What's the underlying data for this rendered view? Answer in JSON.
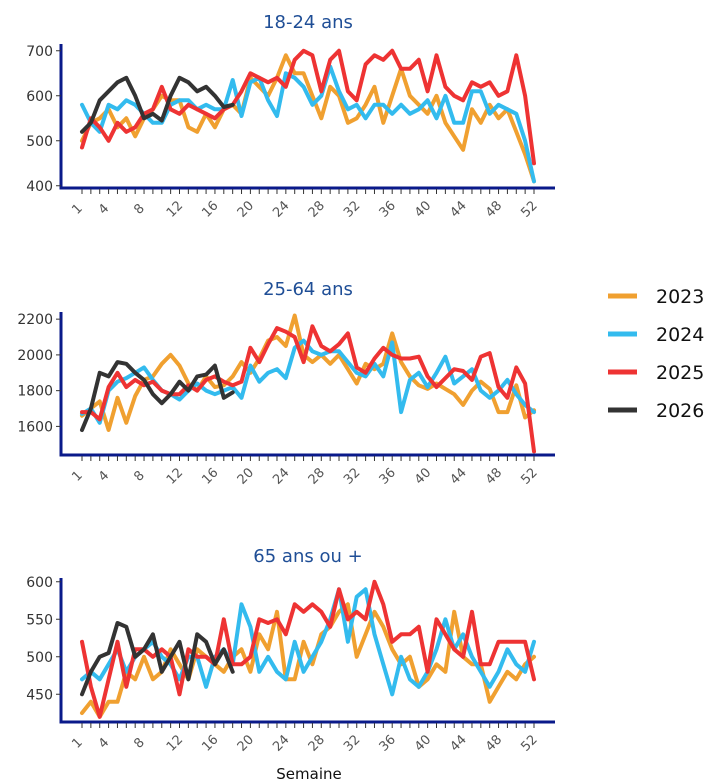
{
  "chart_data": {
    "type": "line",
    "xlabel": "Semaine",
    "x_tick_labels": [
      "1",
      "4",
      "8",
      "12",
      "16",
      "20",
      "24",
      "28",
      "32",
      "36",
      "40",
      "44",
      "48",
      "52"
    ],
    "x_tick_values": [
      1,
      4,
      8,
      12,
      16,
      20,
      24,
      28,
      32,
      36,
      40,
      44,
      48,
      52
    ],
    "legend": {
      "placement": "right",
      "entries": [
        {
          "name": "2023",
          "color": "#F0A030"
        },
        {
          "name": "2024",
          "color": "#33BBEE"
        },
        {
          "name": "2025",
          "color": "#EE3333"
        },
        {
          "name": "2026",
          "color": "#333333"
        }
      ]
    },
    "panels": [
      {
        "title": "18-24 ans",
        "ylim": [
          395,
          715
        ],
        "yticks": [
          400,
          500,
          600,
          700
        ],
        "series": [
          {
            "name": "2023",
            "color": "#F0A030",
            "x_start": 1,
            "values": [
              500,
              540,
              550,
              570,
              530,
              550,
              510,
              550,
              570,
              600,
              590,
              590,
              530,
              520,
              560,
              530,
              570,
              580,
              560,
              640,
              620,
              600,
              640,
              690,
              650,
              650,
              600,
              550,
              620,
              600,
              540,
              550,
              580,
              620,
              540,
              600,
              660,
              600,
              580,
              560,
              600,
              540,
              510,
              480,
              570,
              540,
              580,
              550,
              570,
              520,
              470,
              410
            ]
          },
          {
            "name": "2024",
            "color": "#33BBEE",
            "x_start": 1,
            "values": [
              580,
              540,
              520,
              580,
              570,
              590,
              580,
              560,
              540,
              540,
              580,
              590,
              590,
              570,
              580,
              570,
              570,
              635,
              555,
              630,
              640,
              590,
              555,
              650,
              640,
              620,
              580,
              600,
              665,
              610,
              570,
              580,
              550,
              580,
              580,
              560,
              580,
              560,
              570,
              590,
              550,
              600,
              540,
              540,
              610,
              610,
              560,
              580,
              570,
              560,
              500,
              410
            ]
          },
          {
            "name": "2025",
            "color": "#EE3333",
            "x_start": 1,
            "values": [
              485,
              550,
              530,
              500,
              540,
              520,
              530,
              560,
              570,
              620,
              570,
              560,
              580,
              570,
              560,
              550,
              570,
              580,
              610,
              650,
              640,
              630,
              640,
              620,
              680,
              700,
              690,
              610,
              680,
              700,
              610,
              590,
              670,
              690,
              680,
              700,
              660,
              660,
              680,
              610,
              690,
              620,
              600,
              590,
              630,
              620,
              630,
              600,
              610,
              690,
              600,
              450
            ]
          },
          {
            "name": "2026",
            "color": "#333333",
            "x_start": 1,
            "values": [
              520,
              540,
              590,
              610,
              630,
              640,
              600,
              550,
              560,
              545,
              600,
              640,
              630,
              610,
              620,
              600,
              575,
              580
            ]
          }
        ]
      },
      {
        "title": "25-64 ans",
        "ylim": [
          1440,
          2240
        ],
        "yticks": [
          1600,
          1800,
          2000,
          2200
        ],
        "series": [
          {
            "name": "2023",
            "color": "#F0A030",
            "x_start": 1,
            "values": [
              1660,
              1700,
              1740,
              1580,
              1760,
              1620,
              1770,
              1860,
              1880,
              1950,
              2000,
              1940,
              1840,
              1800,
              1880,
              1820,
              1830,
              1880,
              1960,
              1900,
              1980,
              2080,
              2100,
              2050,
              2220,
              2000,
              1960,
              2000,
              1950,
              2000,
              1920,
              1840,
              1950,
              1920,
              1950,
              2120,
              1960,
              1880,
              1830,
              1810,
              1840,
              1810,
              1780,
              1720,
              1800,
              1850,
              1810,
              1680,
              1680,
              1830,
              1650,
              1690
            ]
          },
          {
            "name": "2024",
            "color": "#33BBEE",
            "x_start": 1,
            "values": [
              1670,
              1700,
              1620,
              1800,
              1850,
              1870,
              1900,
              1930,
              1860,
              1800,
              1780,
              1750,
              1800,
              1840,
              1800,
              1780,
              1800,
              1820,
              1760,
              1940,
              1850,
              1900,
              1920,
              1870,
              2040,
              2080,
              2020,
              2000,
              2020,
              2020,
              1960,
              1900,
              1880,
              1950,
              1880,
              2070,
              1680,
              1860,
              1900,
              1820,
              1900,
              1990,
              1840,
              1880,
              1920,
              1800,
              1760,
              1800,
              1860,
              1780,
              1720,
              1680
            ]
          },
          {
            "name": "2025",
            "color": "#EE3333",
            "x_start": 1,
            "values": [
              1680,
              1680,
              1640,
              1820,
              1900,
              1820,
              1860,
              1830,
              1850,
              1800,
              1780,
              1780,
              1830,
              1800,
              1860,
              1880,
              1850,
              1830,
              1850,
              2040,
              1960,
              2060,
              2150,
              2130,
              2100,
              1960,
              2160,
              2050,
              2020,
              2060,
              2120,
              1930,
              1900,
              1980,
              2040,
              2000,
              1980,
              1980,
              1990,
              1880,
              1820,
              1870,
              1920,
              1910,
              1860,
              1990,
              2010,
              1820,
              1760,
              1930,
              1840,
              1460
            ]
          },
          {
            "name": "2026",
            "color": "#333333",
            "x_start": 1,
            "values": [
              1580,
              1700,
              1900,
              1880,
              1960,
              1950,
              1900,
              1860,
              1780,
              1730,
              1780,
              1850,
              1800,
              1880,
              1890,
              1940,
              1760,
              1790
            ]
          }
        ]
      },
      {
        "title": "65 ans ou +",
        "ylim": [
          413,
          605
        ],
        "yticks": [
          450,
          500,
          550,
          600
        ],
        "series": [
          {
            "name": "2023",
            "color": "#F0A030",
            "x_start": 1,
            "values": [
              425,
              440,
              420,
              440,
              440,
              480,
              470,
              500,
              470,
              480,
              510,
              490,
              470,
              510,
              500,
              490,
              480,
              500,
              510,
              480,
              530,
              510,
              560,
              470,
              470,
              520,
              490,
              530,
              540,
              560,
              570,
              500,
              530,
              560,
              540,
              510,
              490,
              500,
              460,
              470,
              490,
              480,
              560,
              500,
              490,
              490,
              440,
              460,
              480,
              470,
              490,
              500
            ]
          },
          {
            "name": "2024",
            "color": "#33BBEE",
            "x_start": 1,
            "values": [
              470,
              480,
              470,
              490,
              510,
              480,
              500,
              510,
              520,
              500,
              490,
              470,
              500,
              500,
              460,
              500,
              510,
              490,
              570,
              540,
              480,
              500,
              480,
              470,
              520,
              480,
              500,
              520,
              550,
              590,
              520,
              580,
              590,
              530,
              490,
              450,
              500,
              470,
              460,
              480,
              510,
              550,
              510,
              530,
              500,
              480,
              460,
              480,
              510,
              490,
              480,
              520
            ]
          },
          {
            "name": "2025",
            "color": "#EE3333",
            "x_start": 1,
            "values": [
              520,
              460,
              420,
              470,
              520,
              460,
              510,
              510,
              500,
              510,
              500,
              450,
              510,
              500,
              500,
              490,
              550,
              490,
              490,
              500,
              550,
              545,
              550,
              530,
              570,
              560,
              570,
              560,
              540,
              590,
              550,
              560,
              550,
              600,
              570,
              520,
              530,
              530,
              540,
              480,
              550,
              530,
              510,
              500,
              560,
              490,
              490,
              520,
              520,
              520,
              520,
              470
            ]
          },
          {
            "name": "2026",
            "color": "#333333",
            "x_start": 1,
            "values": [
              450,
              480,
              500,
              505,
              545,
              540,
              500,
              510,
              530,
              480,
              500,
              520,
              470,
              530,
              520,
              490,
              510,
              480
            ]
          }
        ]
      }
    ]
  }
}
